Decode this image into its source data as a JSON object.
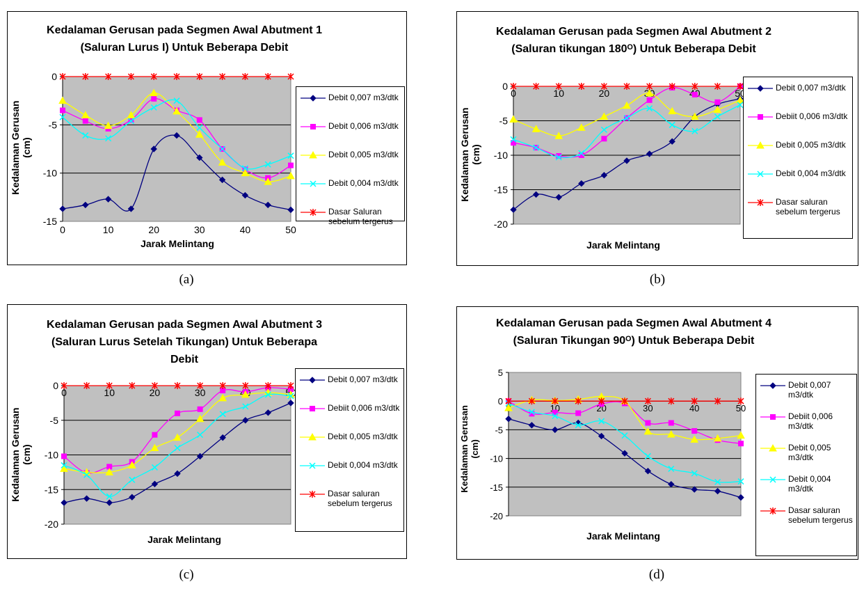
{
  "chart_data": [
    {
      "type": "line",
      "title": "Kedalaman Gerusan pada Segmen Awal Abutment 1\n(Saluran Lurus I) Untuk Beberapa Debit",
      "xlabel": "Jarak Melintang",
      "ylabel": "Kedalaman Gerusan\n(cm)",
      "ylim": [
        -15,
        0
      ],
      "xlim": [
        0,
        50
      ],
      "y_ticks": [
        "0",
        "-5",
        "-10",
        "-15"
      ],
      "x_ticks": [
        "0",
        "10",
        "20",
        "30",
        "40",
        "50"
      ],
      "x_tick_position": "bottom",
      "grid": true,
      "legend": "right",
      "x": [
        0,
        5,
        10,
        15,
        20,
        25,
        30,
        35,
        40,
        45,
        50
      ],
      "series": [
        {
          "name": "Debit 0,007 m3/dtk",
          "color": "#000080",
          "marker": "diamond",
          "values": [
            -13.7,
            -13.3,
            -12.7,
            -13.7,
            -7.5,
            -6.1,
            -8.4,
            -10.7,
            -12.3,
            -13.3,
            -13.8
          ]
        },
        {
          "name": "Debit 0,006 m3/dtk",
          "color": "#ff00ff",
          "marker": "square",
          "values": [
            -3.5,
            -4.6,
            -5.4,
            -4.5,
            -2.3,
            -3.5,
            -4.5,
            -7.5,
            -9.6,
            -10.5,
            -9.2
          ]
        },
        {
          "name": "Debit 0,005 m3/dtk",
          "color": "#ffff00",
          "marker": "triangle",
          "values": [
            -2.5,
            -4.0,
            -5.1,
            -4.0,
            -1.7,
            -3.6,
            -6.0,
            -8.9,
            -10.0,
            -10.9,
            -10.3
          ]
        },
        {
          "name": "Debit 0,004 m3/dtk",
          "color": "#00ffff",
          "marker": "x",
          "values": [
            -4.2,
            -6.1,
            -6.4,
            -4.6,
            -3.2,
            -2.5,
            -5.3,
            -7.5,
            -9.5,
            -9.1,
            -8.2
          ]
        },
        {
          "name": "Dasar Saluran\nsebelum tergerus",
          "color": "#ff0000",
          "marker": "star",
          "values": [
            0,
            0,
            0,
            0,
            0,
            0,
            0,
            0,
            0,
            0,
            0
          ]
        }
      ]
    },
    {
      "type": "line",
      "title": "Kedalaman Gerusan pada Segmen Awal Abutment 2\n(Saluran tikungan 180ᴼ) Untuk Beberapa Debit",
      "xlabel": "Jarak Melintang",
      "ylabel": "Kedalaman Gerusan\n(cm)",
      "ylim": [
        -20,
        0
      ],
      "xlim": [
        0,
        50
      ],
      "y_ticks": [
        "0",
        "-5",
        "-10",
        "-15",
        "-20"
      ],
      "x_ticks": [
        "0",
        "10",
        "20",
        "30",
        "40",
        "50"
      ],
      "x_tick_position": "top",
      "grid": true,
      "legend": "right",
      "x": [
        0,
        5,
        10,
        15,
        20,
        25,
        30,
        35,
        40,
        45,
        50
      ],
      "series": [
        {
          "name": "Debit 0,007 m3/dtk",
          "color": "#000080",
          "marker": "diamond",
          "values": [
            -17.9,
            -15.7,
            -16.1,
            -14.1,
            -12.9,
            -10.8,
            -9.8,
            -8.0,
            -4.4,
            -2.6,
            -1.8
          ]
        },
        {
          "name": "Debiit 0,006 m3/dtk",
          "color": "#ff00ff",
          "marker": "square",
          "values": [
            -8.2,
            -8.9,
            -10.1,
            -10.0,
            -7.6,
            -4.6,
            -2.0,
            -0.2,
            -1.2,
            -2.3,
            0
          ]
        },
        {
          "name": "Debit 0,005 m3/dtk",
          "color": "#ffff00",
          "marker": "triangle",
          "values": [
            -4.8,
            -6.2,
            -7.2,
            -6.0,
            -4.4,
            -2.8,
            -1.0,
            -3.6,
            -4.4,
            -3.4,
            -2.0
          ]
        },
        {
          "name": "Debit 0,004 m3/dtk",
          "color": "#00ffff",
          "marker": "x",
          "values": [
            -7.7,
            -8.9,
            -10.3,
            -9.7,
            -6.3,
            -4.6,
            -3.2,
            -5.6,
            -6.5,
            -4.4,
            -2.7
          ]
        },
        {
          "name": "Dasar saluran\nsebelum tergerus",
          "color": "#ff0000",
          "marker": "star",
          "values": [
            0,
            0,
            0,
            0,
            0,
            0,
            0,
            0,
            0,
            0,
            0
          ]
        }
      ]
    },
    {
      "type": "line",
      "title": "Kedalaman Gerusan pada Segmen Awal Abutment 3\n(Saluran Lurus Setelah Tikungan) Untuk Beberapa\nDebit",
      "xlabel": "Jarak Melintang",
      "ylabel": "Kedalaman Gerusan\n(cm)",
      "ylim": [
        -20,
        0
      ],
      "xlim": [
        0,
        50
      ],
      "y_ticks": [
        "0",
        "-5",
        "-10",
        "-15",
        "-20"
      ],
      "x_ticks": [
        "0",
        "10",
        "20",
        "30",
        "40",
        "50"
      ],
      "x_tick_position": "top",
      "grid": true,
      "legend": "right",
      "x": [
        0,
        5,
        10,
        15,
        20,
        25,
        30,
        35,
        40,
        45,
        50
      ],
      "series": [
        {
          "name": "Debit 0,007 m3/dtk",
          "color": "#000080",
          "marker": "diamond",
          "values": [
            -16.9,
            -16.3,
            -16.9,
            -16.1,
            -14.2,
            -12.7,
            -10.2,
            -7.5,
            -5.0,
            -3.9,
            -2.5
          ]
        },
        {
          "name": "Debiit 0,006 m3/dtk",
          "color": "#ff00ff",
          "marker": "square",
          "values": [
            -10.2,
            -12.6,
            -11.7,
            -11.0,
            -7.1,
            -4.0,
            -3.4,
            -0.7,
            -0.9,
            -0.3,
            -0.5
          ]
        },
        {
          "name": "Debit 0,005 m3/dtk",
          "color": "#ffff00",
          "marker": "triangle",
          "values": [
            -12.0,
            -12.5,
            -12.5,
            -11.5,
            -9.0,
            -7.5,
            -4.8,
            -1.8,
            -1.3,
            -1.0,
            -1.3
          ]
        },
        {
          "name": "Debit 0,004 m3/dtk",
          "color": "#00ffff",
          "marker": "x",
          "values": [
            -11.5,
            -12.9,
            -16.0,
            -13.6,
            -11.8,
            -9.0,
            -7.1,
            -4.1,
            -3.0,
            -1.3,
            -1.5
          ]
        },
        {
          "name": "Dasar saluran\nsebelum tergerus",
          "color": "#ff0000",
          "marker": "star",
          "values": [
            0,
            0,
            0,
            0,
            0,
            0,
            0,
            0,
            0,
            0,
            0
          ]
        }
      ]
    },
    {
      "type": "line",
      "title": "Kedalaman Gerusan pada Segmen Awal Abutment 4\n(Saluran Tikungan 90ᴼ) Untuk Beberapa Debit",
      "xlabel": "Jarak Melintang",
      "ylabel": "Kedalaman Gerusan\n(cm)",
      "ylim": [
        -20,
        5
      ],
      "xlim": [
        0,
        50
      ],
      "y_ticks": [
        "5",
        "0",
        "-5",
        "-10",
        "-15",
        "-20"
      ],
      "x_ticks": [
        "0",
        "10",
        "20",
        "30",
        "40",
        "50"
      ],
      "x_tick_position": "top",
      "grid": true,
      "legend": "right",
      "x": [
        0,
        5,
        10,
        15,
        20,
        25,
        30,
        35,
        40,
        45,
        50
      ],
      "series": [
        {
          "name": "Debit 0,007 m3/dtk",
          "color": "#000080",
          "marker": "diamond",
          "values": [
            -3.1,
            -4.2,
            -5.0,
            -3.8,
            -6.1,
            -9.1,
            -12.2,
            -14.5,
            -15.4,
            -15.7,
            -16.8
          ]
        },
        {
          "name": "Debiit 0,006 m3/dtk",
          "color": "#ff00ff",
          "marker": "square",
          "values": [
            0,
            -2.2,
            -2.0,
            -2.1,
            -0.5,
            -0.4,
            -3.8,
            -3.8,
            -5.2,
            -6.8,
            -7.4
          ]
        },
        {
          "name": "Debit 0,005 m3/dtk",
          "color": "#ffff00",
          "marker": "triangle",
          "values": [
            -1.2,
            0.2,
            0.1,
            0.3,
            0.8,
            0.0,
            -5.3,
            -5.8,
            -6.7,
            -6.5,
            -6.0
          ]
        },
        {
          "name": "Debit 0,004 m3/dtk",
          "color": "#00ffff",
          "marker": "x",
          "values": [
            -0.4,
            -1.9,
            -2.6,
            -4.2,
            -3.5,
            -6.0,
            -9.6,
            -11.8,
            -12.6,
            -14.1,
            -14.0
          ]
        },
        {
          "name": "Dasar saluran\nsebelum tergerus",
          "color": "#ff0000",
          "marker": "star",
          "values": [
            0,
            0,
            0,
            0,
            0,
            0,
            0,
            0,
            0,
            0,
            0
          ]
        }
      ]
    }
  ],
  "captions": [
    "(a)",
    "(b)",
    "(c)",
    "(d)"
  ]
}
